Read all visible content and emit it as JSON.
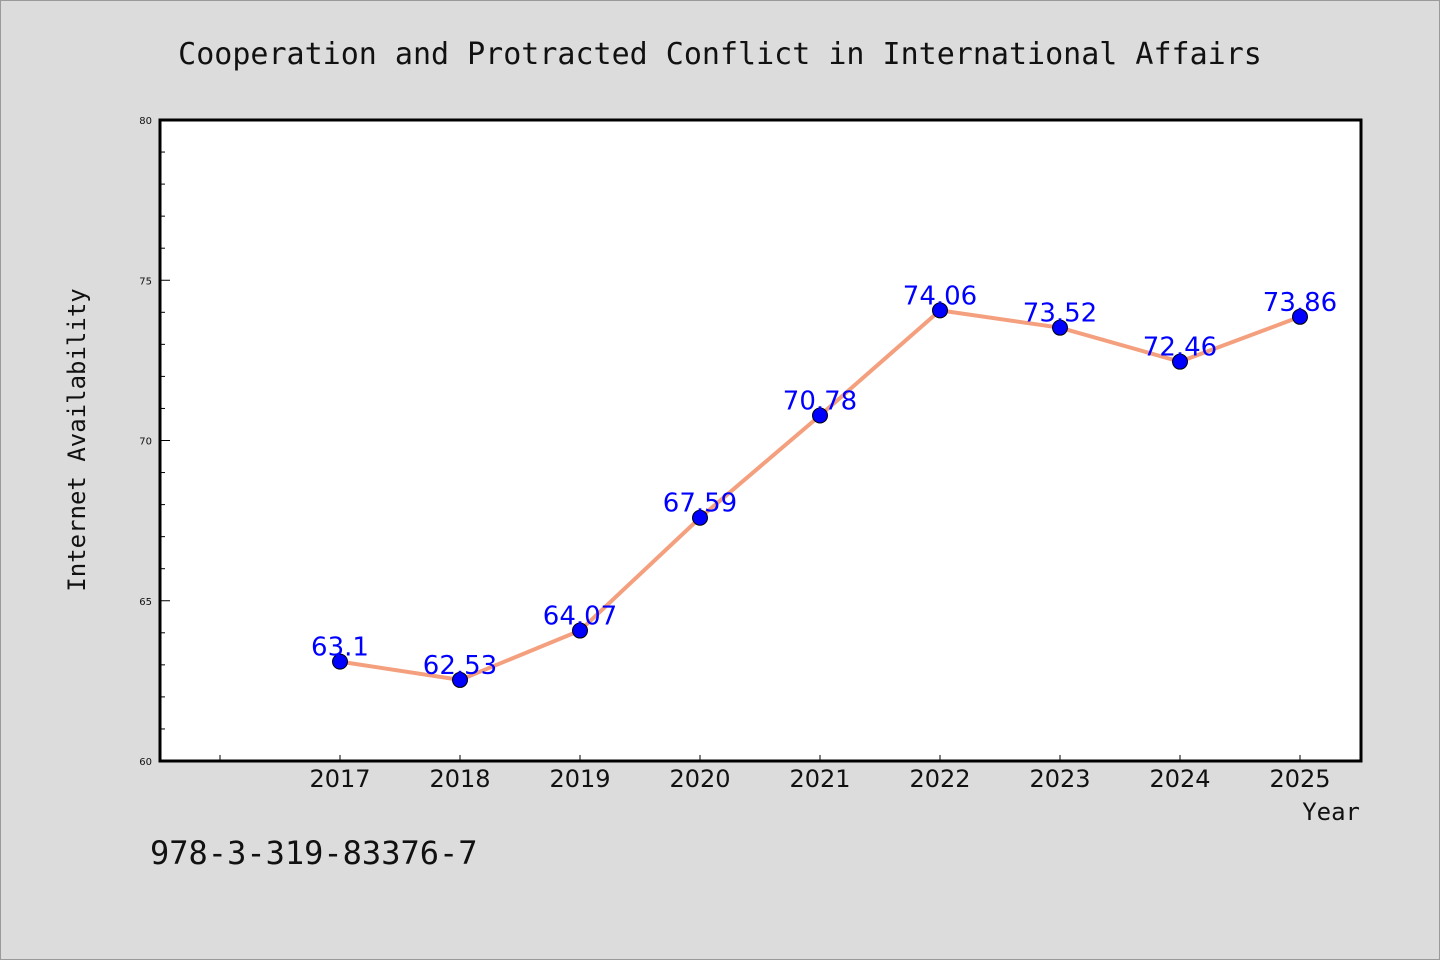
{
  "footer_code": "978-3-319-83376-7",
  "chart_data": {
    "type": "line",
    "title": "Cooperation and Protracted Conflict in International Affairs",
    "xlabel": "Year",
    "ylabel": "Internet Availability",
    "categories": [
      "2017",
      "2018",
      "2019",
      "2020",
      "2021",
      "2022",
      "2023",
      "2024",
      "2025"
    ],
    "values": [
      63.1,
      62.53,
      64.07,
      67.59,
      70.78,
      74.06,
      73.52,
      72.46,
      73.86
    ],
    "data_labels": [
      "63.1",
      "62.53",
      "64.07",
      "67.59",
      "70.78",
      "74.06",
      "73.52",
      "72.46",
      "73.86"
    ],
    "ylim": [
      60,
      80
    ],
    "y_ticks": [
      "60",
      "65",
      "70",
      "75",
      "80"
    ],
    "grid": false,
    "legend": "none",
    "colors": {
      "line": "#f4a07e",
      "marker": "#0000ff",
      "data_label": "#0000ff",
      "plot_background": "#ffffff",
      "figure_background": "#dcdcdc"
    }
  }
}
